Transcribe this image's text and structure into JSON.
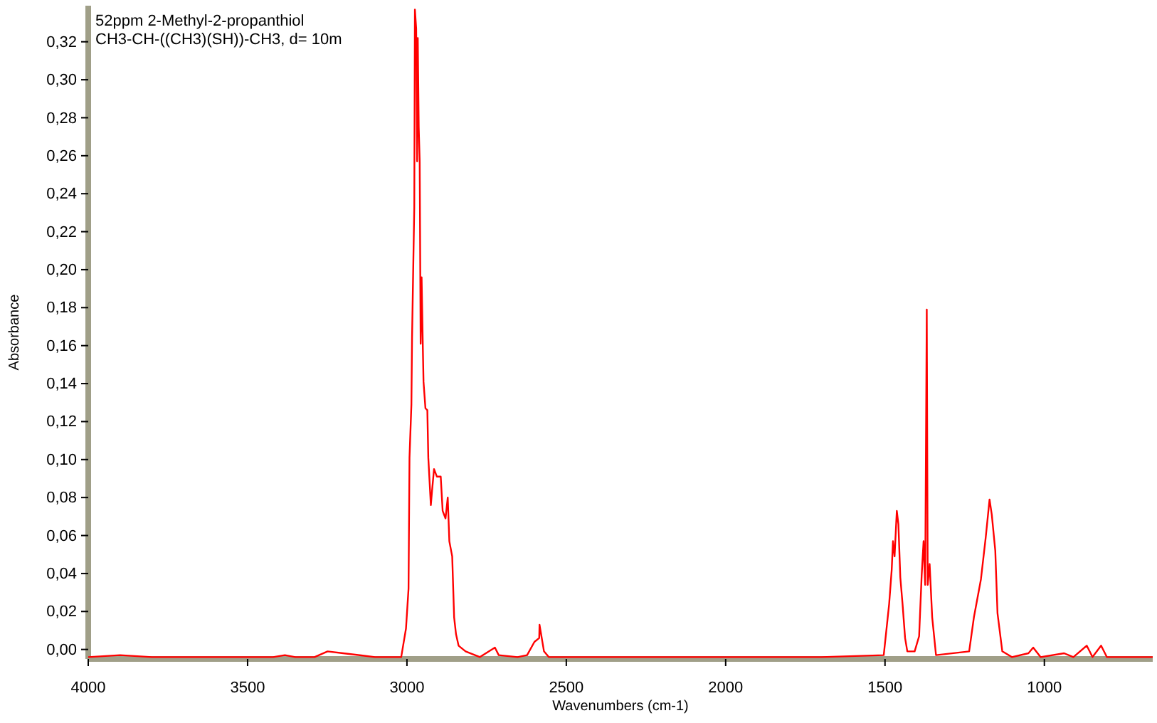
{
  "chart_data": {
    "type": "line",
    "title": "52ppm 2-Methyl-2-propanthiol",
    "subtitle": "CH3-CH-((CH3)(SH))-CH3, d= 10m",
    "xlabel": "Wavenumbers (cm-1)",
    "ylabel": "Absorbance",
    "xlim": [
      4000,
      660
    ],
    "ylim": [
      -0.005,
      0.339
    ],
    "xticks": [
      4000,
      3500,
      3000,
      2500,
      2000,
      1500,
      1000
    ],
    "yticks": [
      {
        "value": 0,
        "label": "0,00"
      },
      {
        "value": 0.02,
        "label": "0,02"
      },
      {
        "value": 0.04,
        "label": "0,04"
      },
      {
        "value": 0.06,
        "label": "0,06"
      },
      {
        "value": 0.08,
        "label": "0,08"
      },
      {
        "value": 0.1,
        "label": "0,10"
      },
      {
        "value": 0.12,
        "label": "0,12"
      },
      {
        "value": 0.14,
        "label": "0,14"
      },
      {
        "value": 0.16,
        "label": "0,16"
      },
      {
        "value": 0.18,
        "label": "0,18"
      },
      {
        "value": 0.2,
        "label": "0,20"
      },
      {
        "value": 0.22,
        "label": "0,22"
      },
      {
        "value": 0.24,
        "label": "0,24"
      },
      {
        "value": 0.26,
        "label": "0,26"
      },
      {
        "value": 0.28,
        "label": "0,28"
      },
      {
        "value": 0.3,
        "label": "0,30"
      },
      {
        "value": 0.32,
        "label": "0,32"
      }
    ],
    "grid": false,
    "marker": "none",
    "line_style": "solid",
    "series": [
      {
        "color": "#ff0000",
        "x": [
          4000,
          3900,
          3800,
          3700,
          3600,
          3420,
          3383,
          3350,
          3290,
          3249,
          3200,
          3100,
          3030,
          3018,
          3003,
          2995,
          2992,
          2986,
          2984,
          2977,
          2975,
          2971,
          2968,
          2966,
          2963,
          2960,
          2957,
          2954,
          2950,
          2948,
          2942,
          2936,
          2933,
          2925,
          2921,
          2915,
          2906,
          2894,
          2888,
          2879,
          2872,
          2867,
          2858,
          2852,
          2846,
          2838,
          2816,
          2771,
          2724,
          2712,
          2653,
          2623,
          2600,
          2585,
          2584,
          2570,
          2555,
          2300,
          2000,
          1700,
          1504,
          1487,
          1479,
          1475,
          1470,
          1463,
          1458,
          1452,
          1445,
          1437,
          1430,
          1407,
          1393,
          1385,
          1379,
          1374,
          1369,
          1366,
          1360,
          1352,
          1340,
          1236,
          1221,
          1199,
          1184,
          1172,
          1165,
          1154,
          1147,
          1132,
          1102,
          1050,
          1035,
          1012,
          938,
          909,
          867,
          849,
          822,
          804,
          660
        ],
        "values": [
          -0.004,
          -0.003,
          -0.004,
          -0.004,
          -0.004,
          -0.004,
          -0.003,
          -0.004,
          -0.004,
          -0.001,
          -0.002,
          -0.004,
          -0.004,
          -0.004,
          0.011,
          0.032,
          0.101,
          0.129,
          0.164,
          0.233,
          0.337,
          0.327,
          0.257,
          0.322,
          0.275,
          0.257,
          0.161,
          0.196,
          0.158,
          0.141,
          0.127,
          0.126,
          0.101,
          0.076,
          0.084,
          0.095,
          0.091,
          0.091,
          0.073,
          0.069,
          0.08,
          0.057,
          0.049,
          0.017,
          0.008,
          0.002,
          -0.001,
          -0.004,
          0.001,
          -0.003,
          -0.004,
          -0.003,
          0.004,
          0.006,
          0.013,
          -0.001,
          -0.004,
          -0.004,
          -0.004,
          -0.004,
          -0.003,
          0.024,
          0.042,
          0.057,
          0.049,
          0.073,
          0.066,
          0.038,
          0.024,
          0.006,
          -0.001,
          -0.001,
          0.007,
          0.039,
          0.057,
          0.034,
          0.179,
          0.034,
          0.045,
          0.017,
          -0.003,
          -0.001,
          0.017,
          0.037,
          0.059,
          0.079,
          0.071,
          0.052,
          0.019,
          -0.001,
          -0.004,
          -0.002,
          0.001,
          -0.004,
          -0.002,
          -0.004,
          0.002,
          -0.004,
          0.002,
          -0.004,
          -0.004
        ]
      }
    ]
  }
}
